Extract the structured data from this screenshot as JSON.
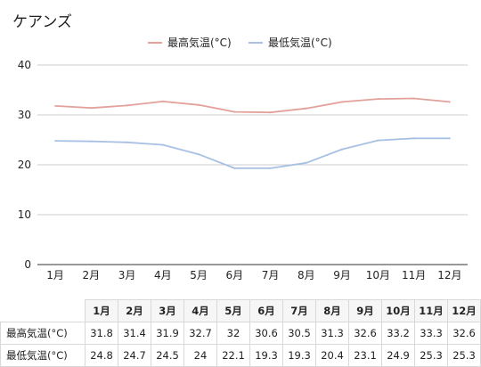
{
  "chart_data": {
    "type": "line",
    "title": "ケアンズ",
    "categories": [
      "1月",
      "2月",
      "3月",
      "4月",
      "5月",
      "6月",
      "7月",
      "8月",
      "9月",
      "10月",
      "11月",
      "12月"
    ],
    "series": [
      {
        "name": "最高気温(°C)",
        "color": "#e3a19c",
        "values": [
          31.8,
          31.4,
          31.9,
          32.7,
          32,
          30.6,
          30.5,
          31.3,
          32.6,
          33.2,
          33.3,
          32.6
        ]
      },
      {
        "name": "最低気温(°C)",
        "color": "#a8c1e3",
        "values": [
          24.8,
          24.7,
          24.5,
          24,
          22.1,
          19.3,
          19.3,
          20.4,
          23.1,
          24.9,
          25.3,
          25.3
        ]
      }
    ],
    "ylim": [
      0,
      40
    ],
    "yticks": [
      0,
      10,
      20,
      30,
      40
    ],
    "grid": true,
    "legend": "top-center"
  }
}
